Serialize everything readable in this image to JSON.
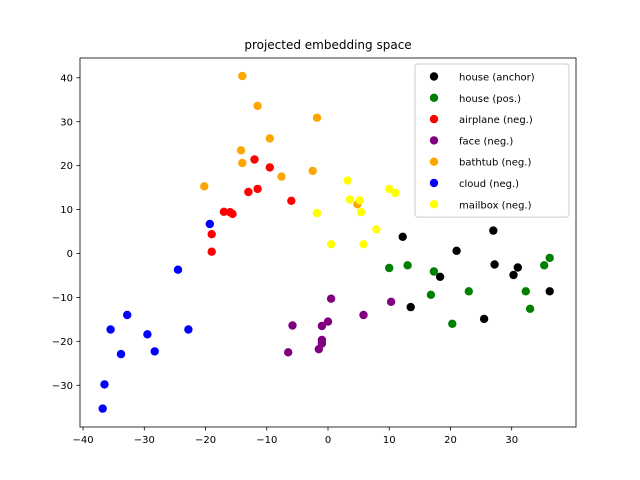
{
  "chart_data": {
    "type": "scatter",
    "title": "projected embedding space",
    "xlabel": "",
    "ylabel": "",
    "xlim": [
      -40.5,
      40.5
    ],
    "ylim": [
      -39.5,
      44.5
    ],
    "x_ticks": [
      -40,
      -30,
      -20,
      -10,
      0,
      10,
      20,
      30
    ],
    "y_ticks": [
      -30,
      -20,
      -10,
      0,
      10,
      20,
      30,
      40
    ],
    "grid": false,
    "legend_position": "top-right",
    "series": [
      {
        "name": "house (anchor)",
        "color": "#000000",
        "points": [
          [
            12.2,
            3.8
          ],
          [
            18.3,
            -5.3
          ],
          [
            21.0,
            0.6
          ],
          [
            27.0,
            5.2
          ],
          [
            27.2,
            -2.5
          ],
          [
            30.3,
            -4.9
          ],
          [
            31.0,
            -3.2
          ],
          [
            36.2,
            -8.6
          ],
          [
            13.5,
            -12.2
          ],
          [
            25.5,
            -14.9
          ]
        ]
      },
      {
        "name": "house (pos.)",
        "color": "#008000",
        "points": [
          [
            10.0,
            -3.3
          ],
          [
            13.0,
            -2.7
          ],
          [
            17.3,
            -4.1
          ],
          [
            16.8,
            -9.4
          ],
          [
            23.0,
            -8.6
          ],
          [
            20.3,
            -16.0
          ],
          [
            32.3,
            -8.6
          ],
          [
            33.0,
            -12.6
          ],
          [
            35.3,
            -2.7
          ],
          [
            36.2,
            -1.0
          ]
        ]
      },
      {
        "name": "airplane (neg.)",
        "color": "#ff0000",
        "points": [
          [
            -19.0,
            4.4
          ],
          [
            -19.0,
            0.4
          ],
          [
            -17.0,
            9.5
          ],
          [
            -16.0,
            9.4
          ],
          [
            -15.6,
            9.0
          ],
          [
            -13.0,
            14.0
          ],
          [
            -11.5,
            14.7
          ],
          [
            -12.0,
            21.4
          ],
          [
            -9.5,
            19.6
          ],
          [
            -6.0,
            12.0
          ]
        ]
      },
      {
        "name": "face (neg.)",
        "color": "#800080",
        "points": [
          [
            -6.5,
            -22.5
          ],
          [
            -5.8,
            -16.4
          ],
          [
            -1.5,
            -21.8
          ],
          [
            -1.0,
            -20.5
          ],
          [
            -1.0,
            -19.7
          ],
          [
            -1.0,
            -16.5
          ],
          [
            0.0,
            -15.5
          ],
          [
            0.5,
            -10.3
          ],
          [
            5.8,
            -14.0
          ],
          [
            10.3,
            -11.0
          ]
        ]
      },
      {
        "name": "bathtub (neg.)",
        "color": "#ffa500",
        "points": [
          [
            -14.0,
            40.4
          ],
          [
            -11.5,
            33.6
          ],
          [
            -9.5,
            26.2
          ],
          [
            -14.2,
            23.5
          ],
          [
            -14.0,
            20.6
          ],
          [
            -20.2,
            15.3
          ],
          [
            -7.6,
            17.5
          ],
          [
            -2.5,
            18.8
          ],
          [
            -1.8,
            30.9
          ],
          [
            4.8,
            11.2
          ]
        ]
      },
      {
        "name": "cloud (neg.)",
        "color": "#0000ff",
        "points": [
          [
            -19.3,
            6.7
          ],
          [
            -24.5,
            -3.7
          ],
          [
            -22.8,
            -17.3
          ],
          [
            -28.3,
            -22.3
          ],
          [
            -29.5,
            -18.4
          ],
          [
            -32.8,
            -14.0
          ],
          [
            -33.8,
            -22.9
          ],
          [
            -35.5,
            -17.3
          ],
          [
            -36.5,
            -29.8
          ],
          [
            -36.8,
            -35.3
          ]
        ]
      },
      {
        "name": "mailbox (neg.)",
        "color": "#ffff00",
        "points": [
          [
            3.2,
            16.6
          ],
          [
            3.6,
            12.3
          ],
          [
            5.2,
            12.1
          ],
          [
            5.4,
            9.4
          ],
          [
            -1.8,
            9.2
          ],
          [
            0.5,
            2.1
          ],
          [
            5.8,
            2.1
          ],
          [
            7.9,
            5.5
          ],
          [
            10.0,
            14.7
          ],
          [
            11.0,
            13.8
          ]
        ]
      }
    ]
  }
}
